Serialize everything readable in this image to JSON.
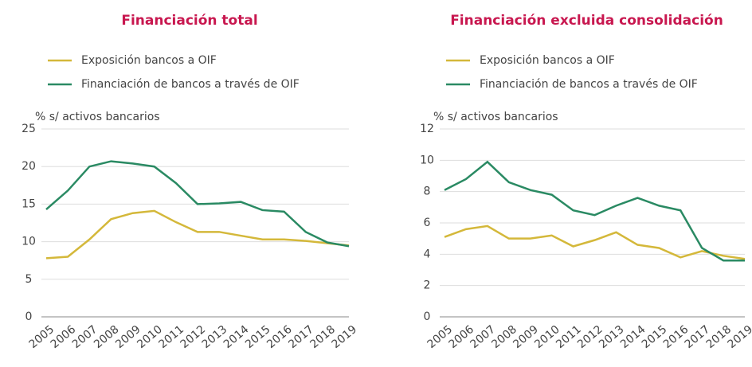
{
  "chart_data": [
    {
      "type": "line",
      "title": "Financiación total",
      "y_label": "% s/ activos bancarios",
      "categories": [
        "2005",
        "2006",
        "2007",
        "2008",
        "2009",
        "2010",
        "2011",
        "2012",
        "2013",
        "2014",
        "2015",
        "2016",
        "2017",
        "2018",
        "2019"
      ],
      "series": [
        {
          "name": "Exposición bancos a OIF",
          "color": "#d4b83a",
          "values": [
            7.8,
            8.0,
            10.3,
            13.0,
            13.8,
            14.1,
            12.6,
            11.3,
            11.3,
            10.8,
            10.3,
            10.3,
            10.1,
            9.8,
            9.5
          ]
        },
        {
          "name": "Financiación de bancos a través de OIF",
          "color": "#2a8a63",
          "values": [
            14.3,
            16.8,
            20.0,
            20.7,
            20.4,
            20.0,
            17.8,
            15.0,
            15.1,
            15.3,
            14.2,
            14.0,
            11.3,
            9.9,
            9.4
          ]
        }
      ],
      "ylim": [
        0,
        25
      ],
      "yticks": [
        0,
        5,
        10,
        15,
        20,
        25
      ],
      "grid": true
    },
    {
      "type": "line",
      "title": "Financiación excluida consolidación",
      "y_label": "% s/ activos bancarios",
      "categories": [
        "2005",
        "2006",
        "2007",
        "2008",
        "2009",
        "2010",
        "2011",
        "2012",
        "2013",
        "2014",
        "2015",
        "2016",
        "2017",
        "2018",
        "2019"
      ],
      "series": [
        {
          "name": "Exposición bancos a OIF",
          "color": "#d4b83a",
          "values": [
            5.1,
            5.6,
            5.8,
            5.0,
            5.0,
            5.2,
            4.5,
            4.9,
            5.4,
            4.6,
            4.4,
            3.8,
            4.2,
            3.9,
            3.7
          ]
        },
        {
          "name": "Financiación de bancos a través de OIF",
          "color": "#2a8a63",
          "values": [
            8.1,
            8.8,
            9.9,
            8.6,
            8.1,
            7.8,
            6.8,
            6.5,
            7.1,
            7.6,
            7.1,
            6.8,
            4.4,
            3.6,
            3.6
          ]
        }
      ],
      "ylim": [
        0,
        12
      ],
      "yticks": [
        0,
        2,
        4,
        6,
        8,
        10,
        12
      ],
      "grid": true
    }
  ]
}
